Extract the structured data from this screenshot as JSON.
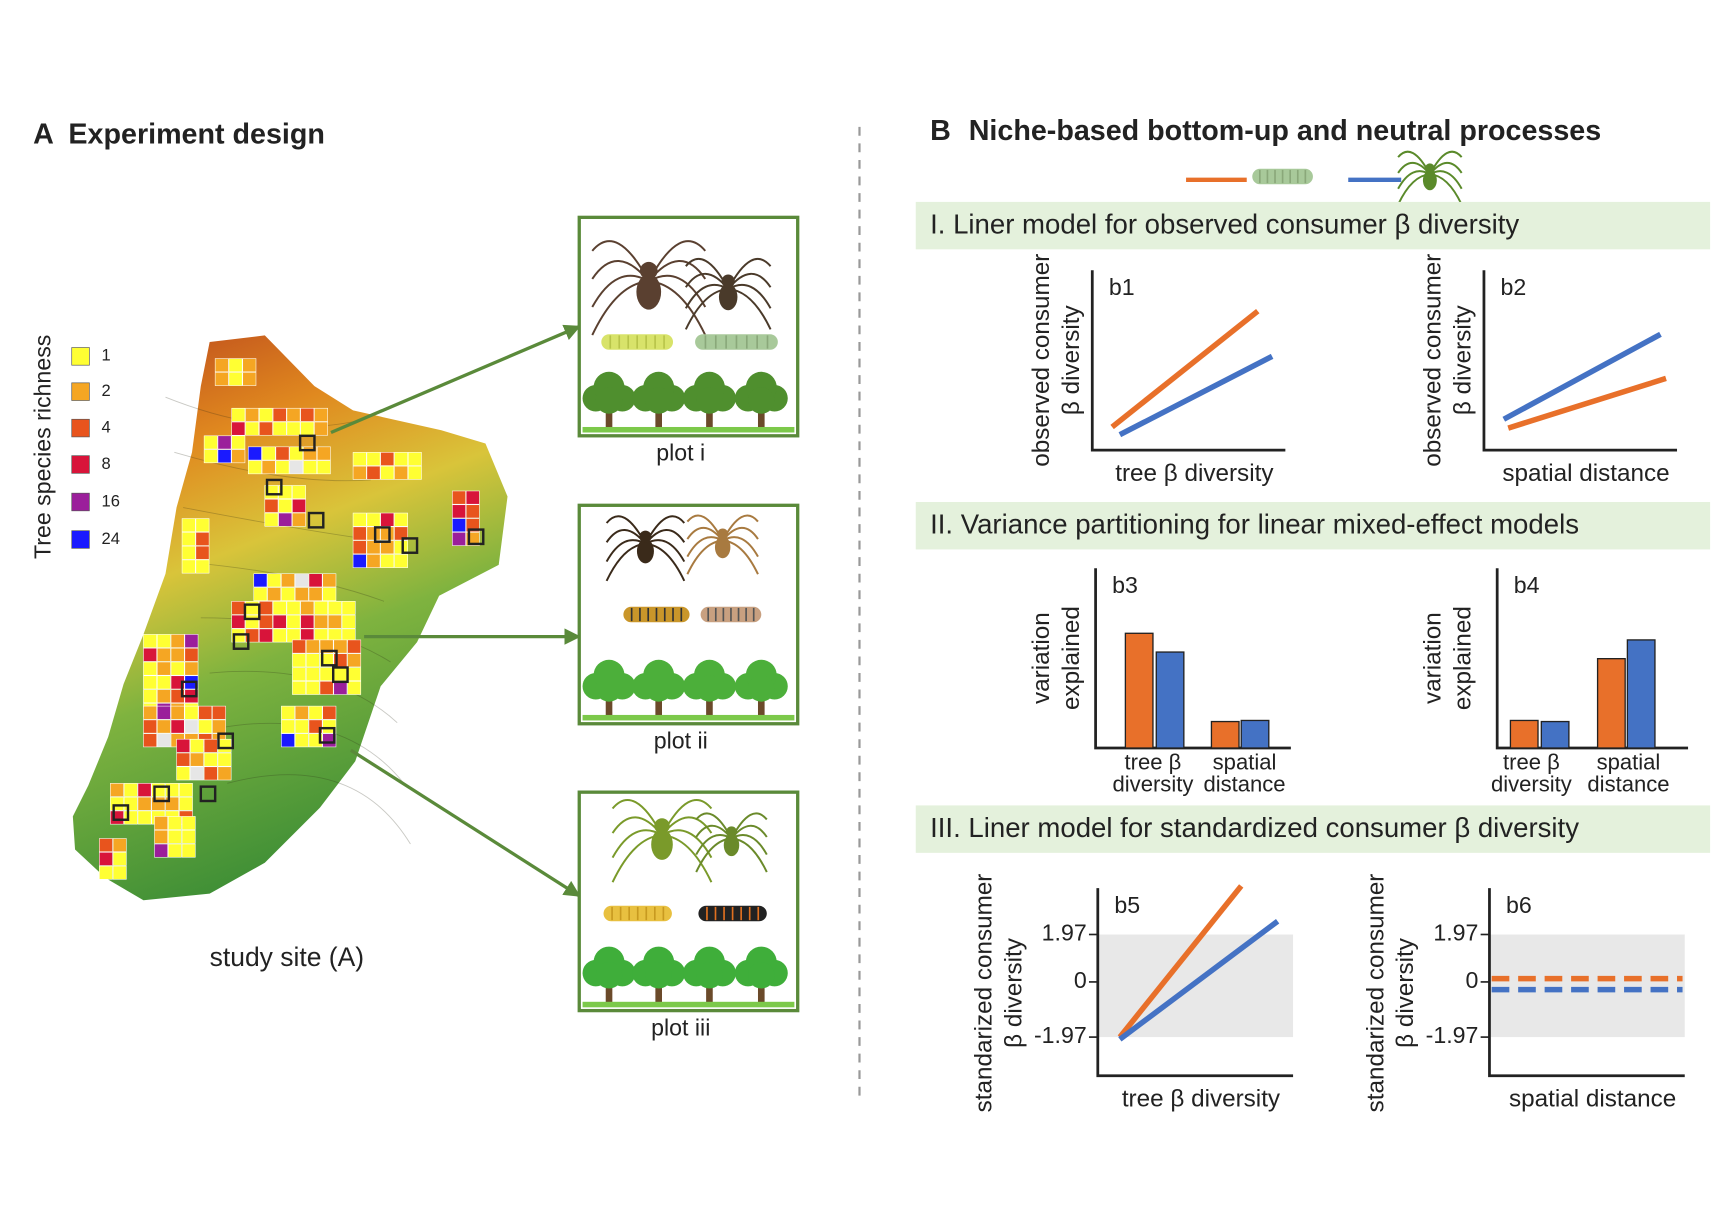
{
  "panel_a": {
    "label": "A",
    "title": "Experiment design",
    "legend": {
      "title": "Tree species richness",
      "items": [
        "1",
        "2",
        "4",
        "8",
        "16",
        "24"
      ]
    },
    "site_label": "study site (A)",
    "plots": [
      "plot i",
      "plot ii",
      "plot iii"
    ]
  },
  "panel_b": {
    "label": "B",
    "title": "Niche-based bottom-up and neutral processes",
    "sections": [
      "I. Liner model for observed consumer β diversity",
      "II. Variance partitioning for linear mixed-effect models",
      "III. Liner model for standardized consumer β diversity"
    ],
    "subplots": [
      {
        "label": "b1",
        "ylabel": [
          "observed consumer",
          "β diversity"
        ],
        "xlabel": "tree β diversity"
      },
      {
        "label": "b2",
        "ylabel": [
          "observed consumer",
          "β diversity"
        ],
        "xlabel": "spatial distance"
      },
      {
        "label": "b3",
        "ylabel": [
          "variation",
          "explained"
        ],
        "categories": [
          [
            "tree β",
            "diversity"
          ],
          [
            "spatial",
            "distance"
          ]
        ]
      },
      {
        "label": "b4",
        "ylabel": [
          "variation",
          "explained"
        ],
        "categories": [
          [
            "tree β",
            "diversity"
          ],
          [
            "spatial",
            "distance"
          ]
        ]
      },
      {
        "label": "b5",
        "ylabel": [
          "standarized consumer",
          "β diversity"
        ],
        "xlabel": "tree β diversity",
        "ticks": [
          "1.97",
          "0",
          "-1.97"
        ]
      },
      {
        "label": "b6",
        "ylabel": [
          "standarized consumer",
          "β diversity"
        ],
        "xlabel": "spatial distance",
        "ticks": [
          "1.97",
          "0",
          "-1.97"
        ]
      }
    ]
  }
}
